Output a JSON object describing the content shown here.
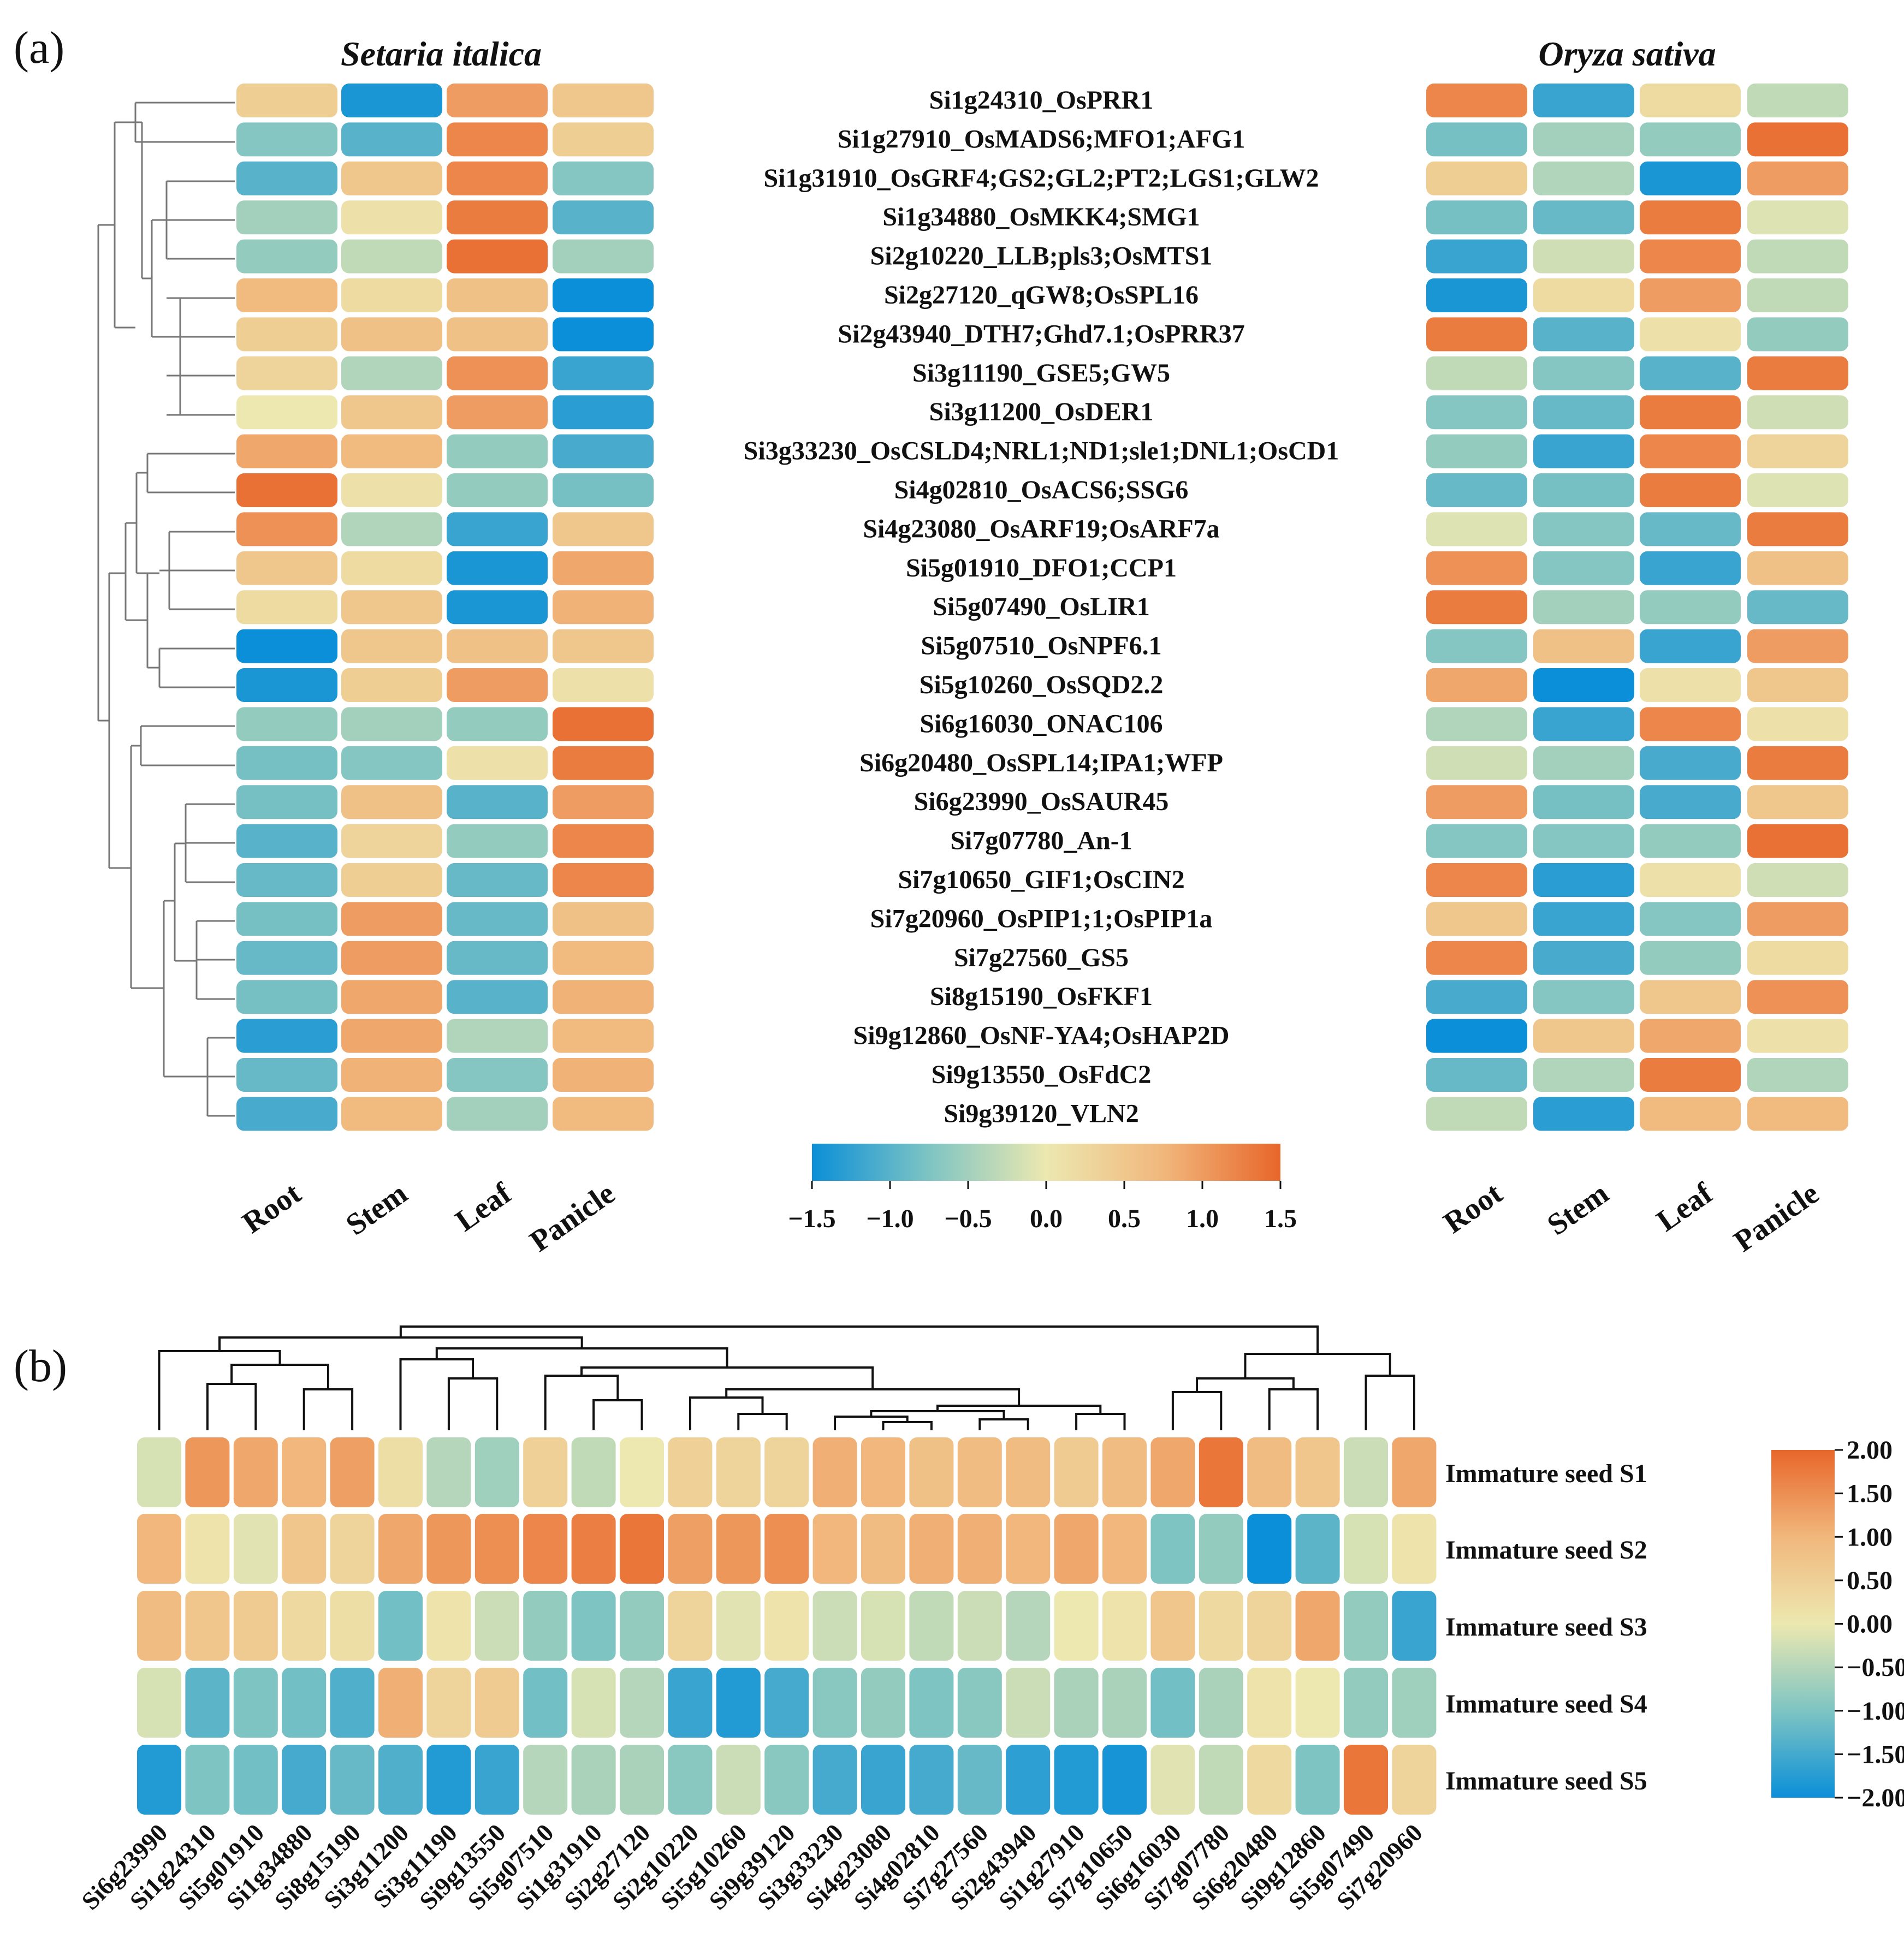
{
  "figure": {
    "panel_a_label": "(a)",
    "panel_b_label": "(b)"
  },
  "chart_data": [
    {
      "type": "heatmap",
      "title": "Setaria italica",
      "columns": [
        "Root",
        "Stem",
        "Leaf",
        "Panicle"
      ],
      "row_labels": [
        "Si1g24310_OsPRR1",
        "Si1g27910_OsMADS6;MFO1;AFG1",
        "Si1g31910_OsGRF4;GS2;GL2;PT2;LGS1;GLW2",
        "Si1g34880_OsMKK4;SMG1",
        "Si2g10220_LLB;pls3;OsMTS1",
        "Si2g27120_qGW8;OsSPL16",
        "Si2g43940_DTH7;Ghd7.1;OsPRR37",
        "Si3g11190_GSE5;GW5",
        "Si3g11200_OsDER1",
        "Si3g33230_OsCSLD4;NRL1;ND1;sle1;DNL1;OsCD1",
        "Si4g02810_OsACS6;SSG6",
        "Si4g23080_OsARF19;OsARF7a",
        "Si5g01910_DFO1;CCP1",
        "Si5g07490_OsLIR1",
        "Si5g07510_OsNPF6.1",
        "Si5g10260_OsSQD2.2",
        "Si6g16030_ONAC106",
        "Si6g20480_OsSPL14;IPA1;WFP",
        "Si6g23990_OsSAUR45",
        "Si7g07780_An-1",
        "Si7g10650_GIF1;OsCIN2",
        "Si7g20960_OsPIP1;1;OsPIP1a",
        "Si7g27560_GS5",
        "Si8g15190_OsFKF1",
        "Si9g12860_OsNF-YA4;OsHAP2D",
        "Si9g13550_OsFdC2",
        "Si9g39120_VLN2"
      ],
      "values": [
        [
          0.4,
          -1.4,
          1.0,
          0.5
        ],
        [
          -0.7,
          -1.0,
          1.2,
          0.4
        ],
        [
          -1.0,
          0.5,
          1.2,
          -0.7
        ],
        [
          -0.5,
          0.1,
          1.3,
          -1.0
        ],
        [
          -0.6,
          -0.3,
          1.4,
          -0.5
        ],
        [
          0.7,
          0.2,
          0.6,
          -1.5
        ],
        [
          0.4,
          0.6,
          0.6,
          -1.5
        ],
        [
          0.3,
          -0.4,
          1.1,
          -1.2
        ],
        [
          0.0,
          0.5,
          1.0,
          -1.3
        ],
        [
          0.9,
          0.7,
          -0.6,
          -1.1
        ],
        [
          1.4,
          0.1,
          -0.6,
          -0.8
        ],
        [
          1.1,
          -0.4,
          -1.2,
          0.5
        ],
        [
          0.5,
          0.2,
          -1.4,
          0.9
        ],
        [
          0.2,
          0.5,
          -1.4,
          0.8
        ],
        [
          -1.5,
          0.5,
          0.6,
          0.5
        ],
        [
          -1.4,
          0.4,
          1.0,
          0.1
        ],
        [
          -0.6,
          -0.5,
          -0.6,
          1.4
        ],
        [
          -0.8,
          -0.7,
          0.1,
          1.3
        ],
        [
          -0.8,
          0.6,
          -1.0,
          1.0
        ],
        [
          -1.0,
          0.3,
          -0.6,
          1.2
        ],
        [
          -0.9,
          0.4,
          -0.9,
          1.2
        ],
        [
          -0.8,
          1.0,
          -0.9,
          0.6
        ],
        [
          -0.9,
          1.0,
          -0.9,
          0.7
        ],
        [
          -0.8,
          0.9,
          -1.0,
          0.8
        ],
        [
          -1.3,
          0.9,
          -0.4,
          0.7
        ],
        [
          -0.9,
          0.8,
          -0.7,
          0.8
        ],
        [
          -1.1,
          0.7,
          -0.5,
          0.7
        ]
      ],
      "colorbar": {
        "min": -1.5,
        "max": 1.5,
        "ticks": [
          "−1.5",
          "−1.0",
          "−0.5",
          "0.0",
          "0.5",
          "1.0",
          "1.5"
        ]
      }
    },
    {
      "type": "heatmap",
      "title": "Oryza sativa",
      "columns": [
        "Root",
        "Stem",
        "Leaf",
        "Panicle"
      ],
      "values": [
        [
          1.2,
          -1.2,
          0.2,
          -0.3
        ],
        [
          -0.8,
          -0.5,
          -0.6,
          1.4
        ],
        [
          0.4,
          -0.4,
          -1.4,
          1.0
        ],
        [
          -0.8,
          -0.9,
          1.3,
          -0.1
        ],
        [
          -1.2,
          -0.2,
          1.2,
          -0.3
        ],
        [
          -1.4,
          0.2,
          1.0,
          -0.3
        ],
        [
          1.3,
          -1.0,
          0.1,
          -0.6
        ],
        [
          -0.3,
          -0.7,
          -1.0,
          1.3
        ],
        [
          -0.7,
          -0.9,
          1.3,
          -0.2
        ],
        [
          -0.6,
          -1.2,
          1.2,
          0.3
        ],
        [
          -0.9,
          -0.8,
          1.3,
          -0.1
        ],
        [
          -0.1,
          -0.7,
          -0.9,
          1.3
        ],
        [
          1.1,
          -0.7,
          -1.2,
          0.6
        ],
        [
          1.3,
          -0.5,
          -0.6,
          -0.9
        ],
        [
          -0.7,
          0.6,
          -1.2,
          1.0
        ],
        [
          0.9,
          -1.5,
          0.1,
          0.5
        ],
        [
          -0.4,
          -1.2,
          1.2,
          0.1
        ],
        [
          -0.2,
          -0.5,
          -1.1,
          1.3
        ],
        [
          1.0,
          -0.8,
          -1.1,
          0.5
        ],
        [
          -0.7,
          -0.7,
          -0.6,
          1.4
        ],
        [
          1.2,
          -1.3,
          0.1,
          -0.2
        ],
        [
          0.5,
          -1.2,
          -0.7,
          1.0
        ],
        [
          1.2,
          -1.1,
          -0.6,
          0.2
        ],
        [
          -1.1,
          -0.7,
          0.5,
          1.1
        ],
        [
          -1.5,
          0.5,
          0.9,
          0.1
        ],
        [
          -0.9,
          -0.4,
          1.3,
          -0.4
        ],
        [
          -0.3,
          -1.3,
          0.7,
          0.7
        ]
      ]
    },
    {
      "type": "heatmap",
      "rows": [
        "Immature seed S1",
        "Immature seed S2",
        "Immature seed S3",
        "Immature seed S4",
        "Immature seed S5"
      ],
      "columns": [
        "Si6g23990",
        "Si1g24310",
        "Si5g01910",
        "Si1g34880",
        "Si8g15190",
        "Si3g11200",
        "Si3g11190",
        "Si9g13550",
        "Si5g07510",
        "Si1g31910",
        "Si2g27120",
        "Si2g10220",
        "Si5g10260",
        "Si9g39120",
        "Si3g33230",
        "Si4g23080",
        "Si4g02810",
        "Si7g27560",
        "Si2g43940",
        "Si1g27910",
        "Si7g10650",
        "Si6g16030",
        "Si7g07780",
        "Si6g20480",
        "Si9g12860",
        "Si5g07490",
        "Si7g20960"
      ],
      "values": [
        [
          -0.2,
          1.4,
          1.2,
          1.0,
          1.3,
          0.2,
          -0.5,
          -0.7,
          0.5,
          -0.4,
          0.0,
          0.5,
          0.4,
          0.4,
          1.1,
          1.0,
          0.8,
          0.9,
          0.9,
          0.6,
          0.9,
          1.2,
          1.8,
          0.9,
          0.7,
          -0.3,
          1.2
        ],
        [
          1.0,
          0.1,
          -0.1,
          0.7,
          0.4,
          1.2,
          1.4,
          1.5,
          1.6,
          1.7,
          1.8,
          1.3,
          1.4,
          1.5,
          1.0,
          0.9,
          1.1,
          1.1,
          1.0,
          1.2,
          1.0,
          -1.0,
          -0.8,
          -2.0,
          -1.3,
          -0.2,
          0.1
        ],
        [
          0.9,
          0.7,
          0.6,
          0.3,
          0.2,
          -1.1,
          0.1,
          -0.3,
          -0.8,
          -1.0,
          -0.8,
          0.4,
          -0.1,
          0.1,
          -0.3,
          -0.2,
          -0.4,
          -0.3,
          -0.5,
          0.0,
          0.1,
          0.7,
          0.3,
          0.4,
          1.2,
          -0.8,
          -1.6
        ],
        [
          -0.2,
          -1.3,
          -1.0,
          -1.1,
          -1.4,
          1.1,
          0.4,
          0.6,
          -1.1,
          -0.2,
          -0.5,
          -1.6,
          -1.8,
          -1.5,
          -0.9,
          -0.8,
          -1.0,
          -0.9,
          -0.3,
          -0.6,
          -0.6,
          -1.1,
          -0.6,
          0.1,
          0.0,
          -0.8,
          -0.7
        ],
        [
          -1.8,
          -1.0,
          -1.1,
          -1.5,
          -1.2,
          -1.4,
          -1.8,
          -1.6,
          -0.5,
          -0.6,
          -0.6,
          -0.9,
          -0.3,
          -0.9,
          -1.5,
          -1.6,
          -1.5,
          -1.2,
          -1.7,
          -1.8,
          -1.9,
          -0.1,
          -0.4,
          0.3,
          -1.0,
          1.8,
          0.4
        ]
      ],
      "colorbar": {
        "min": -2.0,
        "max": 2.0,
        "ticks": [
          "2.00",
          "1.50",
          "1.00",
          "0.50",
          "0.00",
          "−0.50",
          "−1.00",
          "−1.50",
          "−2.00"
        ]
      }
    }
  ]
}
